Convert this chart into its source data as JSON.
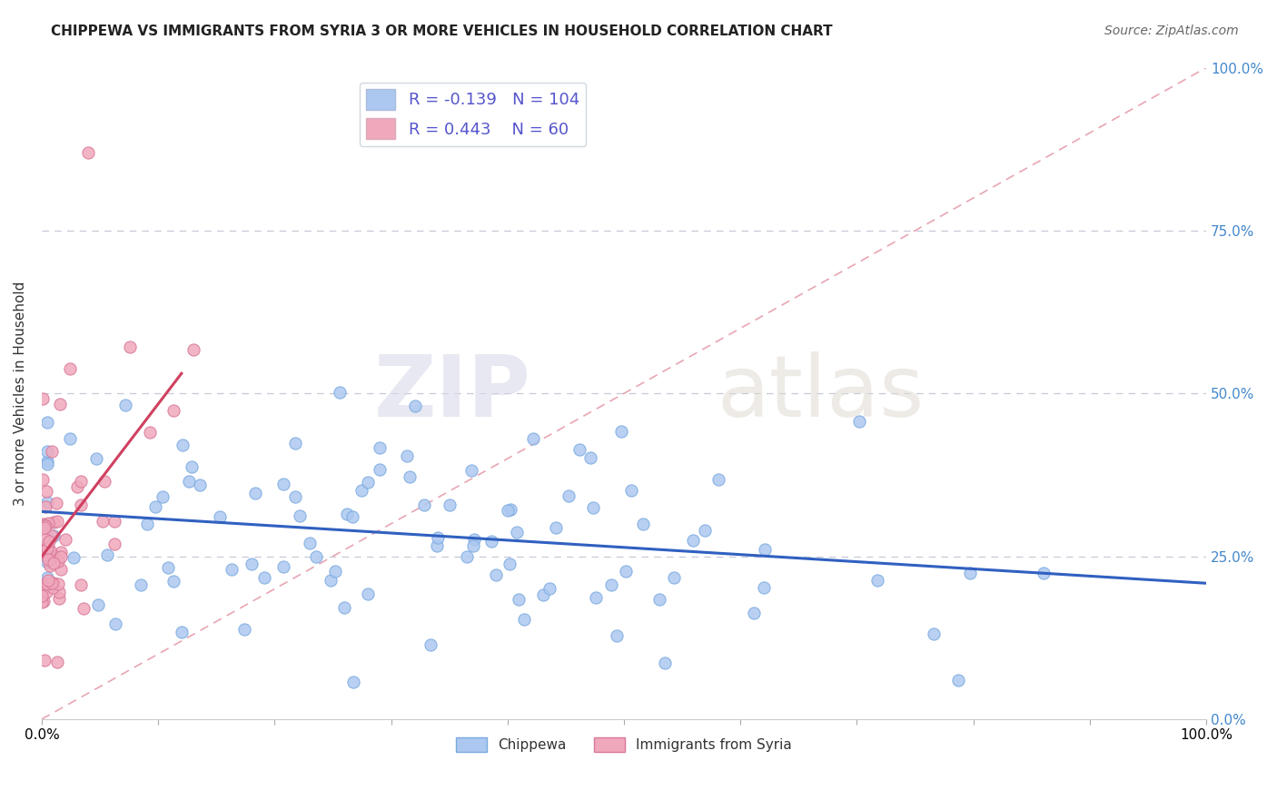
{
  "title": "CHIPPEWA VS IMMIGRANTS FROM SYRIA 3 OR MORE VEHICLES IN HOUSEHOLD CORRELATION CHART",
  "source": "Source: ZipAtlas.com",
  "ylabel": "3 or more Vehicles in Household",
  "chippewa_R": -0.139,
  "chippewa_N": 104,
  "syria_R": 0.443,
  "syria_N": 60,
  "chippewa_color": "#adc8f0",
  "chippewa_edge_color": "#7aaae0",
  "chippewa_line_color": "#3060c0",
  "syria_color": "#f0a8bc",
  "syria_edge_color": "#d87898",
  "syria_line_color": "#d04060",
  "diag_line_color": "#e08898",
  "legend_box_color": "#5555cc",
  "background_color": "#ffffff",
  "xlim": [
    0.0,
    1.0
  ],
  "ylim": [
    0.0,
    1.0
  ],
  "right_yticklabels": [
    "0.0%",
    "25.0%",
    "50.0%",
    "75.0%",
    "100.0%"
  ],
  "seed": 12345
}
